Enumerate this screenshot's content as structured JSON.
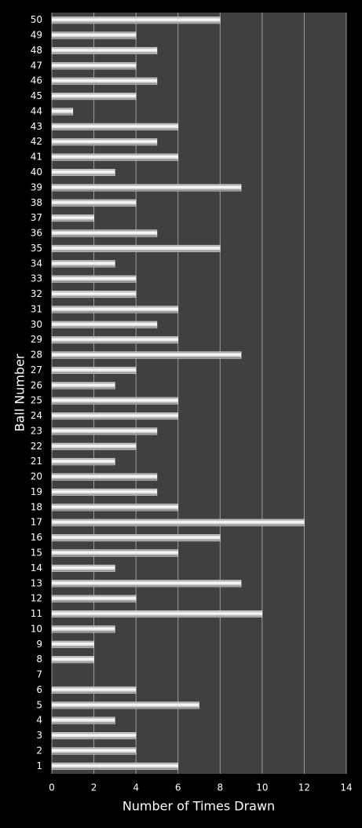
{
  "chart_data": {
    "type": "bar",
    "orientation": "horizontal",
    "x_label": "Number of Times Drawn",
    "y_label": "Ball Number",
    "categories": [
      1,
      2,
      3,
      4,
      5,
      6,
      7,
      8,
      9,
      10,
      11,
      12,
      13,
      14,
      15,
      16,
      17,
      18,
      19,
      20,
      21,
      22,
      23,
      24,
      25,
      26,
      27,
      28,
      29,
      30,
      31,
      32,
      33,
      34,
      35,
      36,
      37,
      38,
      39,
      40,
      41,
      42,
      43,
      44,
      45,
      46,
      47,
      48,
      49,
      50
    ],
    "values": [
      6,
      4,
      4,
      3,
      7,
      4,
      0,
      2,
      2,
      3,
      10,
      4,
      9,
      3,
      6,
      8,
      12,
      6,
      5,
      5,
      3,
      4,
      5,
      6,
      6,
      3,
      4,
      9,
      6,
      5,
      6,
      4,
      4,
      3,
      8,
      5,
      2,
      4,
      9,
      3,
      6,
      5,
      6,
      1,
      4,
      5,
      4,
      5,
      4,
      8
    ],
    "color": "#ffffff",
    "xlim": [
      0,
      14
    ],
    "xticks": [
      0,
      2,
      4,
      6,
      8,
      10,
      12,
      14
    ],
    "grid": true
  }
}
